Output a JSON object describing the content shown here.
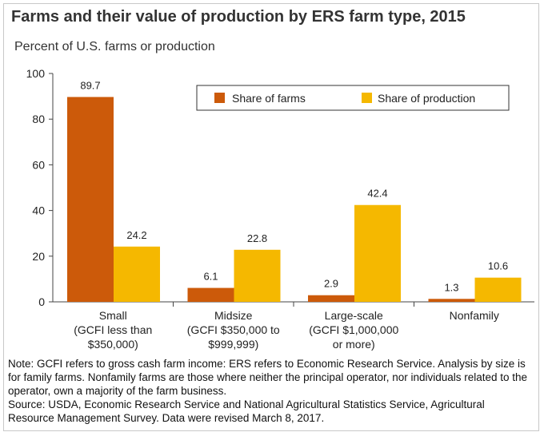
{
  "title": "Farms and their value of production by ERS farm type, 2015",
  "subtitle": "Percent of U.S. farms or production",
  "colors": {
    "share_of_farms": "#cc5a0a",
    "share_of_production": "#f5b800",
    "grid": "#d6d6d6",
    "axis": "#444444"
  },
  "chart_data": {
    "type": "bar",
    "title": "Farms and their value of production by ERS farm type, 2015",
    "ylabel": "Percent of U.S. farms or production",
    "ylim": [
      0,
      100
    ],
    "yticks": [
      0,
      20,
      40,
      60,
      80,
      100
    ],
    "grid": false,
    "legend": "top-right",
    "categories": [
      [
        "Small",
        "(GCFI less than",
        "$350,000)"
      ],
      [
        "Midsize",
        "(GCFI $350,000 to",
        "$999,999)"
      ],
      [
        "Large-scale",
        "(GCFI $1,000,000",
        "or more)"
      ],
      [
        "Nonfamily"
      ]
    ],
    "series": [
      {
        "name": "Share of farms",
        "values": [
          89.7,
          6.1,
          2.9,
          1.3
        ],
        "labels": [
          "89.7",
          "6.1",
          "2.9",
          "1.3"
        ]
      },
      {
        "name": "Share of production",
        "values": [
          24.2,
          22.8,
          42.4,
          10.6
        ],
        "labels": [
          "24.2",
          "22.8",
          "42.4",
          "10.6"
        ]
      }
    ]
  },
  "notes": {
    "note": "Note: GCFI refers to gross cash farm income: ERS refers to Economic Research Service. Analysis by size is for family farms. Nonfamily farms are those where neither the principal operator, nor individuals related to the operator, own a majority of the farm business.",
    "source": "Source: USDA, Economic Research Service and National Agricultural Statistics Service, Agricultural Resource Management Survey. Data were revised March 8, 2017."
  }
}
